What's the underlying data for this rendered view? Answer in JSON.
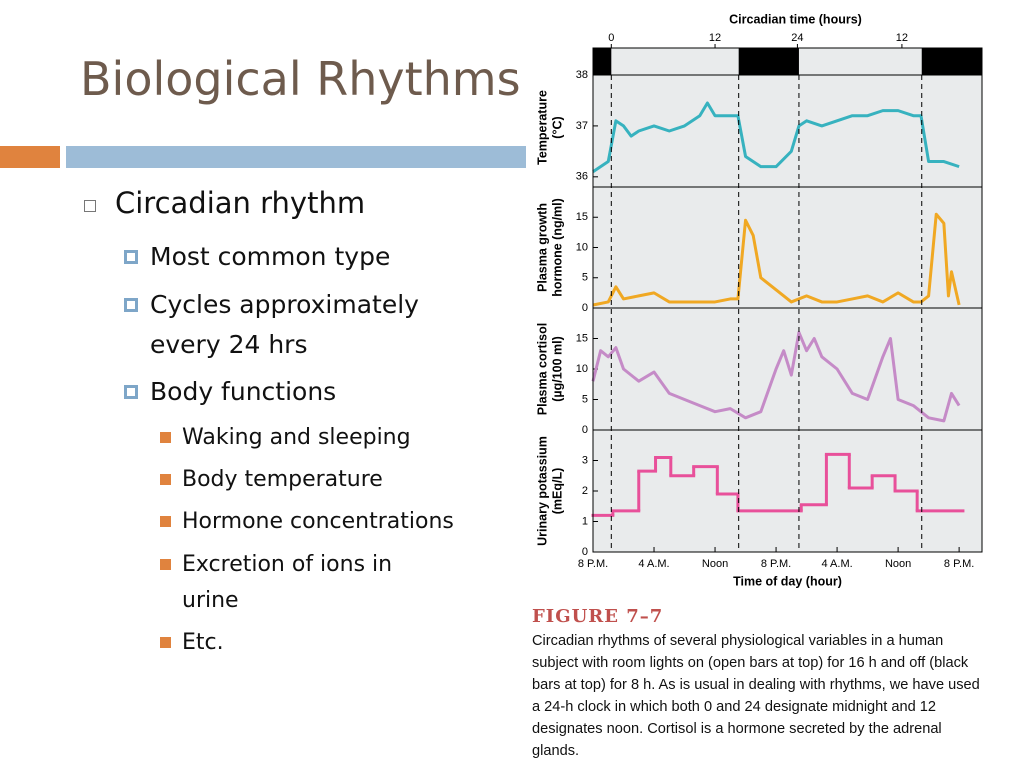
{
  "slide": {
    "title": "Biological Rhythms",
    "bullets": [
      {
        "text": "Circadian rhythm",
        "children": [
          {
            "text": "Most common type"
          },
          {
            "text": "Cycles approximately every 24 hrs"
          },
          {
            "text": "Body functions",
            "children": [
              {
                "text": "Waking and sleeping"
              },
              {
                "text": "Body temperature"
              },
              {
                "text": "Hormone concentrations"
              },
              {
                "text": "Excretion of ions in urine"
              },
              {
                "text": "Etc."
              }
            ]
          }
        ]
      }
    ]
  },
  "figure": {
    "label": "FIGURE 7–7",
    "caption": "Circadian rhythms of several physiological variables in a human subject with room lights on (open bars at top) for 16 h and off (black bars at top) for 8 h. As is usual in dealing with rhythms, we have used a 24-h clock in which both 0 and 24 designate midnight and 12 designates noon. Cortisol is a hormone secreted by the adrenal glands."
  },
  "chart_data": [
    {
      "type": "line",
      "ylabel": [
        "Temperature",
        "(°C)"
      ],
      "x2label": "Circadian time (hours)",
      "x2ticks": [
        {
          "value": 2.4,
          "label": "0"
        },
        {
          "value": 16,
          "label": "12"
        },
        {
          "value": 26.8,
          "label": "24"
        },
        {
          "value": 40.5,
          "label": "12"
        }
      ],
      "dark_periods": [
        [
          0,
          2.4
        ],
        [
          19.1,
          27
        ],
        [
          43.1,
          51
        ]
      ],
      "xlim": [
        0,
        51
      ],
      "ylim": [
        35.8,
        38
      ],
      "yticks": [
        36,
        37,
        38
      ],
      "series": [
        {
          "color": "#37b2bf",
          "x": [
            0,
            2,
            3,
            4,
            5,
            6,
            8,
            10,
            12,
            14,
            15,
            16,
            18,
            19,
            20,
            22,
            24,
            26,
            27,
            28,
            30,
            32,
            34,
            36,
            38,
            40,
            42,
            43,
            44,
            46,
            48
          ],
          "values": [
            36.1,
            36.3,
            37.1,
            37.0,
            36.8,
            36.9,
            37.0,
            36.9,
            37.0,
            37.2,
            37.45,
            37.2,
            37.2,
            37.2,
            36.4,
            36.2,
            36.2,
            36.5,
            37.0,
            37.1,
            37.0,
            37.1,
            37.2,
            37.2,
            37.3,
            37.3,
            37.2,
            37.2,
            36.3,
            36.3,
            36.2
          ]
        }
      ]
    },
    {
      "type": "line",
      "ylabel": [
        "Plasma growth",
        "hormone (ng/ml)"
      ],
      "xlim": [
        0,
        51
      ],
      "ylim": [
        0,
        20
      ],
      "yticks": [
        0,
        5,
        10,
        15
      ],
      "series": [
        {
          "color": "#f0a823",
          "x": [
            0,
            2,
            3,
            4,
            6,
            8,
            10,
            12,
            14,
            16,
            18,
            19,
            20,
            21,
            22,
            24,
            26,
            28,
            30,
            32,
            34,
            36,
            38,
            40,
            42,
            43,
            44,
            45,
            46,
            46.6,
            47,
            48
          ],
          "values": [
            0.5,
            1,
            3.5,
            1.5,
            2,
            2.5,
            1,
            1,
            1,
            1,
            1.5,
            1.5,
            14.5,
            12,
            5,
            3,
            1,
            2,
            1,
            1,
            1.5,
            2,
            1,
            2.5,
            1,
            1,
            2,
            15.5,
            14,
            2,
            6,
            0.5
          ]
        }
      ]
    },
    {
      "type": "line",
      "ylabel": [
        "Plasma cortisol",
        "(µg/100 ml)"
      ],
      "xlim": [
        0,
        51
      ],
      "ylim": [
        0,
        20
      ],
      "yticks": [
        0,
        5,
        10,
        15
      ],
      "series": [
        {
          "color": "#c58bc7",
          "x": [
            0,
            1,
            2,
            3,
            4,
            6,
            8,
            10,
            12,
            14,
            16,
            18,
            20,
            22,
            24,
            25,
            26,
            27,
            28,
            29,
            30,
            32,
            34,
            36,
            38,
            39,
            40,
            42,
            44,
            46,
            47,
            48
          ],
          "values": [
            8,
            13,
            12,
            13.5,
            10,
            8,
            9.5,
            6,
            5,
            4,
            3,
            3.5,
            2,
            3,
            10,
            13,
            9,
            16,
            13,
            15,
            12,
            10,
            6,
            5,
            12,
            15,
            5,
            4,
            2,
            1.5,
            6,
            4
          ]
        }
      ]
    },
    {
      "type": "step",
      "ylabel": [
        "Urinary potassium",
        "(mEq/L)"
      ],
      "xlabel": "Time of day (hour)",
      "xlim": [
        0,
        51
      ],
      "ylim": [
        0,
        4
      ],
      "yticks": [
        0,
        1,
        2,
        3
      ],
      "xticks": [
        {
          "value": 0,
          "label": "8 P.M."
        },
        {
          "value": 8,
          "label": "4 A.M."
        },
        {
          "value": 16,
          "label": "Noon"
        },
        {
          "value": 24,
          "label": "8 P.M."
        },
        {
          "value": 32,
          "label": "4 A.M."
        },
        {
          "value": 40,
          "label": "Noon"
        },
        {
          "value": 48,
          "label": "8 P.M."
        }
      ],
      "series": [
        {
          "color": "#e8509a",
          "bins": [
            0,
            2.6,
            6,
            8.2,
            10.2,
            13.2,
            16.3,
            19,
            27.3,
            30.6,
            33.6,
            36.6,
            39.6,
            42.5,
            48.5
          ],
          "values": [
            1.2,
            1.35,
            2.65,
            3.1,
            2.5,
            2.8,
            1.9,
            1.35,
            1.55,
            3.2,
            2.1,
            2.5,
            2.0,
            1.35
          ]
        }
      ]
    }
  ]
}
